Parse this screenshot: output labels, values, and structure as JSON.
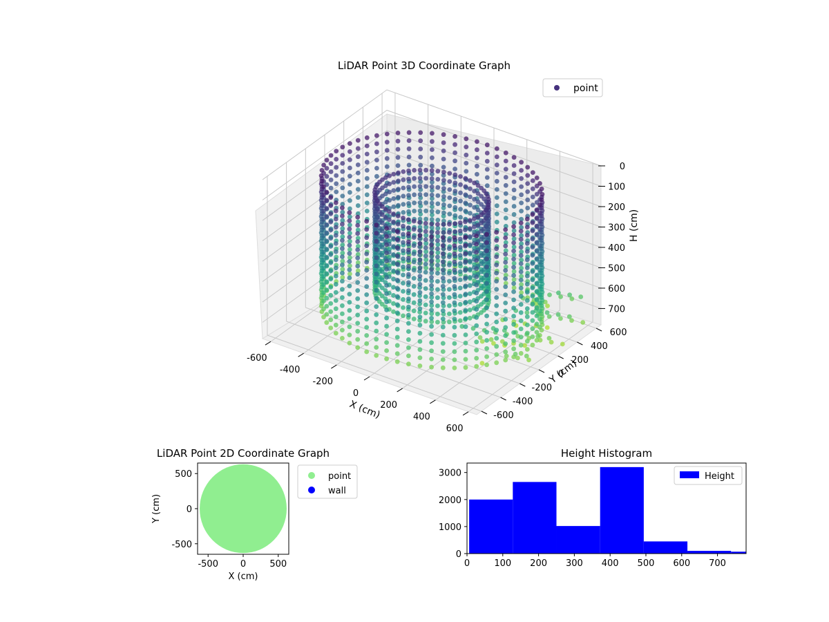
{
  "chart_data": [
    {
      "type": "scatter",
      "projection": "3d",
      "title": "LiDAR Point 3D Coordinate Graph",
      "xlabel": "X (cm)",
      "ylabel": "Y (cm)",
      "zlabel": "H (cm)",
      "x_ticks": [
        -600,
        -400,
        -200,
        0,
        200,
        400,
        600
      ],
      "y_ticks": [
        -600,
        -400,
        -200,
        0,
        200,
        400,
        600
      ],
      "z_ticks": [
        0,
        100,
        200,
        300,
        400,
        500,
        600,
        700
      ],
      "xlim": [
        -650,
        650
      ],
      "ylim": [
        -650,
        650
      ],
      "zlim": [
        0,
        780
      ],
      "z_inverted": true,
      "colormap": "viridis",
      "legend": {
        "placement": "upper-right",
        "entries": [
          {
            "label": "point",
            "color": "#46327e"
          }
        ]
      },
      "grid": true,
      "series": [
        {
          "name": "point",
          "description_points": [
            {
              "ring": "outer wall",
              "radius": 580,
              "h_range": [
                60,
                720
              ]
            },
            {
              "ring": "inner wall",
              "radius": 300,
              "h_range": [
                120,
                620
              ]
            }
          ]
        }
      ]
    },
    {
      "type": "scatter",
      "title": "LiDAR Point 2D Coordinate Graph",
      "xlabel": "X (cm)",
      "ylabel": "Y (cm)",
      "x_ticks": [
        -500,
        0,
        500
      ],
      "y_ticks": [
        -500,
        0,
        500
      ],
      "xlim": [
        -650,
        650
      ],
      "ylim": [
        -650,
        650
      ],
      "legend": {
        "placement": "outside-right",
        "entries": [
          {
            "label": "point",
            "color": "#90ee90"
          },
          {
            "label": "wall",
            "color": "#0000ff"
          }
        ]
      },
      "series": [
        {
          "name": "point",
          "color": "#90ee90",
          "shape": "disc",
          "center": [
            0,
            0
          ],
          "radius": 620
        },
        {
          "name": "wall",
          "color": "#0000ff",
          "points": []
        }
      ]
    },
    {
      "type": "bar",
      "title": "Height Histogram",
      "xlabel": "",
      "ylabel": "",
      "x_ticks": [
        0,
        100,
        200,
        300,
        400,
        500,
        600,
        700
      ],
      "y_ticks": [
        0,
        1000,
        2000,
        3000
      ],
      "xlim": [
        0,
        780
      ],
      "ylim": [
        0,
        3350
      ],
      "legend": {
        "placement": "upper-right",
        "entries": [
          {
            "label": "Height",
            "color": "#0000ff"
          }
        ]
      },
      "bins": [
        {
          "x0": 6,
          "x1": 128,
          "count": 2000
        },
        {
          "x0": 128,
          "x1": 250,
          "count": 2650
        },
        {
          "x0": 250,
          "x1": 372,
          "count": 1020
        },
        {
          "x0": 372,
          "x1": 494,
          "count": 3200
        },
        {
          "x0": 494,
          "x1": 616,
          "count": 450
        },
        {
          "x0": 616,
          "x1": 738,
          "count": 100
        },
        {
          "x0": 738,
          "x1": 800,
          "count": 70
        }
      ],
      "color": "#0000ff"
    }
  ]
}
